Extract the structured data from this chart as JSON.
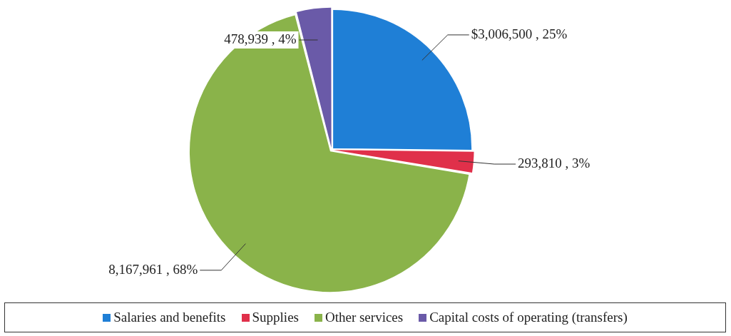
{
  "chart_data": {
    "type": "pie",
    "categories": [
      "Salaries and benefits",
      "Supplies",
      "Other services",
      "Capital costs of operating (transfers)"
    ],
    "values": [
      3006500,
      293810,
      8167961,
      478939
    ],
    "colors": [
      "#1f7fd6",
      "#e0304a",
      "#8ab34a",
      "#6a5aa8"
    ],
    "value_labels": [
      "$3,006,500 , 25%",
      "293,810 , 3%",
      "8,167,961 , 68%",
      "478,939 , 4%"
    ],
    "legend": "bottom"
  }
}
